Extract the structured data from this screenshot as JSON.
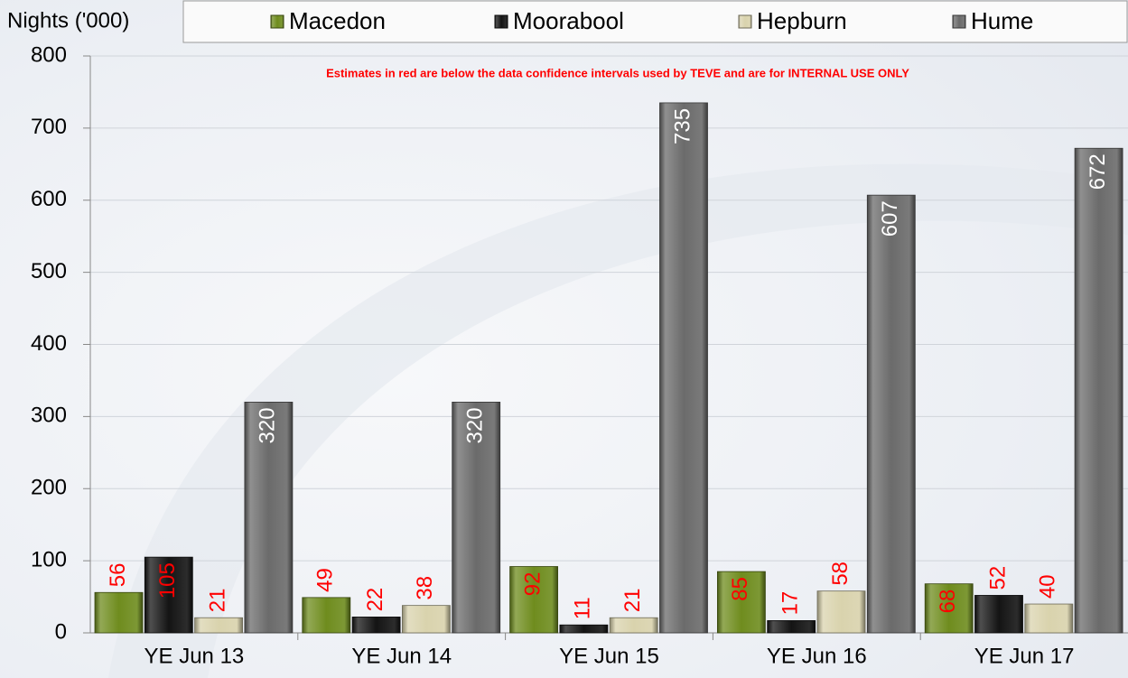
{
  "chart_data": {
    "type": "bar",
    "y_axis_label": "Nights ('000)",
    "annotation": "Estimates in red are below the data confidence intervals used by TEVE and are for INTERNAL USE ONLY",
    "categories": [
      "YE Jun 13",
      "YE Jun 14",
      "YE Jun 15",
      "YE Jun 16",
      "YE Jun 17"
    ],
    "series": [
      {
        "name": "Macedon",
        "color": "#6f8c1e",
        "label_color": "#ff0000",
        "values": [
          56,
          49,
          92,
          85,
          68
        ]
      },
      {
        "name": "Moorabool",
        "color": "#141414",
        "label_color": "#ff0000",
        "values": [
          105,
          22,
          11,
          17,
          52
        ]
      },
      {
        "name": "Hepburn",
        "color": "#d9d3ad",
        "label_color": "#ff0000",
        "values": [
          21,
          38,
          21,
          58,
          40
        ]
      },
      {
        "name": "Hume",
        "color": "#6b6b6b",
        "label_color": "#ffffff",
        "values": [
          320,
          320,
          735,
          607,
          672
        ]
      }
    ],
    "ylim": [
      0,
      800
    ],
    "yticks": [
      0,
      100,
      200,
      300,
      400,
      500,
      600,
      700,
      800
    ],
    "grid": true
  }
}
